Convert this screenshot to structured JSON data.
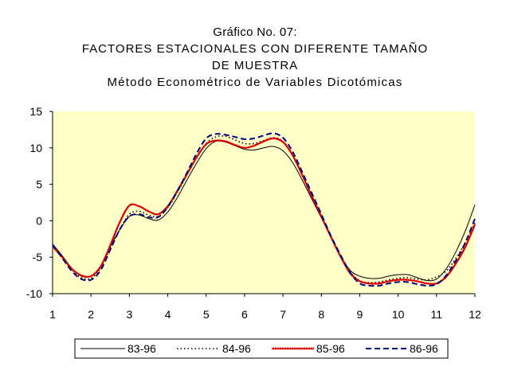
{
  "chart_data": {
    "type": "line",
    "title_lines": [
      "Gráfico No. 07:",
      "FACTORES ESTACIONALES CON DIFERENTE TAMAÑO",
      "DE MUESTRA",
      "Método Econométrico de Variables Dicotómicas"
    ],
    "x": [
      1,
      1.25,
      1.5,
      1.75,
      2,
      2.25,
      2.5,
      2.75,
      3,
      3.25,
      3.5,
      3.75,
      4,
      4.25,
      4.5,
      4.75,
      5,
      5.25,
      5.5,
      5.75,
      6,
      6.25,
      6.5,
      6.75,
      7,
      7.25,
      7.5,
      7.75,
      8,
      8.25,
      8.5,
      8.75,
      9,
      9.25,
      9.5,
      9.75,
      10,
      10.25,
      10.5,
      10.75,
      11,
      11.25,
      11.5,
      11.75,
      12
    ],
    "xlim": [
      1,
      12
    ],
    "ylim": [
      -10,
      15
    ],
    "x_ticks": [
      "1",
      "2",
      "3",
      "4",
      "5",
      "6",
      "7",
      "8",
      "9",
      "10",
      "11",
      "12"
    ],
    "y_ticks": [
      "15",
      "10",
      "5",
      "0",
      "-5",
      "-10"
    ],
    "legend_position": "bottom",
    "series": [
      {
        "name": "83-96",
        "color": "#000000",
        "style": "solid",
        "values": [
          -3.2,
          -4.8,
          -6.5,
          -7.6,
          -7.6,
          -6.2,
          -3.6,
          -1.2,
          0.6,
          0.8,
          0.3,
          0.1,
          1.2,
          3.2,
          5.6,
          7.9,
          9.9,
          10.9,
          10.8,
          10.3,
          9.8,
          9.7,
          10.0,
          10.2,
          9.6,
          8.0,
          5.6,
          3.0,
          0.4,
          -2.3,
          -4.8,
          -6.8,
          -7.6,
          -7.9,
          -7.9,
          -7.6,
          -7.4,
          -7.4,
          -7.8,
          -8.2,
          -8.0,
          -6.6,
          -4.3,
          -1.4,
          2.2
        ]
      },
      {
        "name": "84-96",
        "color": "#000000",
        "style": "dotted",
        "values": [
          -3.4,
          -5.0,
          -6.7,
          -7.8,
          -7.9,
          -6.5,
          -3.8,
          -1.2,
          0.9,
          1.3,
          0.8,
          0.6,
          1.8,
          3.9,
          6.3,
          8.6,
          10.6,
          11.5,
          11.6,
          11.1,
          10.6,
          10.6,
          11.0,
          11.4,
          10.9,
          9.1,
          6.2,
          3.3,
          0.6,
          -2.2,
          -4.8,
          -7.0,
          -8.2,
          -8.5,
          -8.4,
          -8.1,
          -7.9,
          -7.8,
          -8.0,
          -8.1,
          -7.7,
          -6.9,
          -5.2,
          -3.0,
          -0.3
        ]
      },
      {
        "name": "85-96",
        "color": "#e00000",
        "style": "solid-red",
        "values": [
          -3.5,
          -5.0,
          -6.6,
          -7.5,
          -7.6,
          -6.3,
          -3.4,
          -0.2,
          2.1,
          2.0,
          1.3,
          0.9,
          2.0,
          4.1,
          6.4,
          8.7,
          10.5,
          11.0,
          10.9,
          10.4,
          10.0,
          10.3,
          10.9,
          11.3,
          10.8,
          9.0,
          6.3,
          3.4,
          0.6,
          -2.2,
          -4.9,
          -7.2,
          -8.3,
          -8.6,
          -8.6,
          -8.3,
          -8.1,
          -8.1,
          -8.3,
          -8.6,
          -8.6,
          -7.7,
          -5.9,
          -3.6,
          -0.5
        ]
      },
      {
        "name": "86-96",
        "color": "#000080",
        "style": "dashed",
        "values": [
          -3.3,
          -5.1,
          -6.9,
          -8.0,
          -8.1,
          -6.8,
          -4.0,
          -1.2,
          0.6,
          0.9,
          0.5,
          0.5,
          1.9,
          4.1,
          6.6,
          9.2,
          11.3,
          11.9,
          11.8,
          11.5,
          11.2,
          11.3,
          11.7,
          12.0,
          11.4,
          9.5,
          6.7,
          3.8,
          0.9,
          -2.1,
          -4.7,
          -7.1,
          -8.6,
          -8.9,
          -8.9,
          -8.6,
          -8.4,
          -8.4,
          -8.7,
          -8.9,
          -8.7,
          -7.5,
          -5.5,
          -3.0,
          0.3
        ]
      }
    ]
  }
}
